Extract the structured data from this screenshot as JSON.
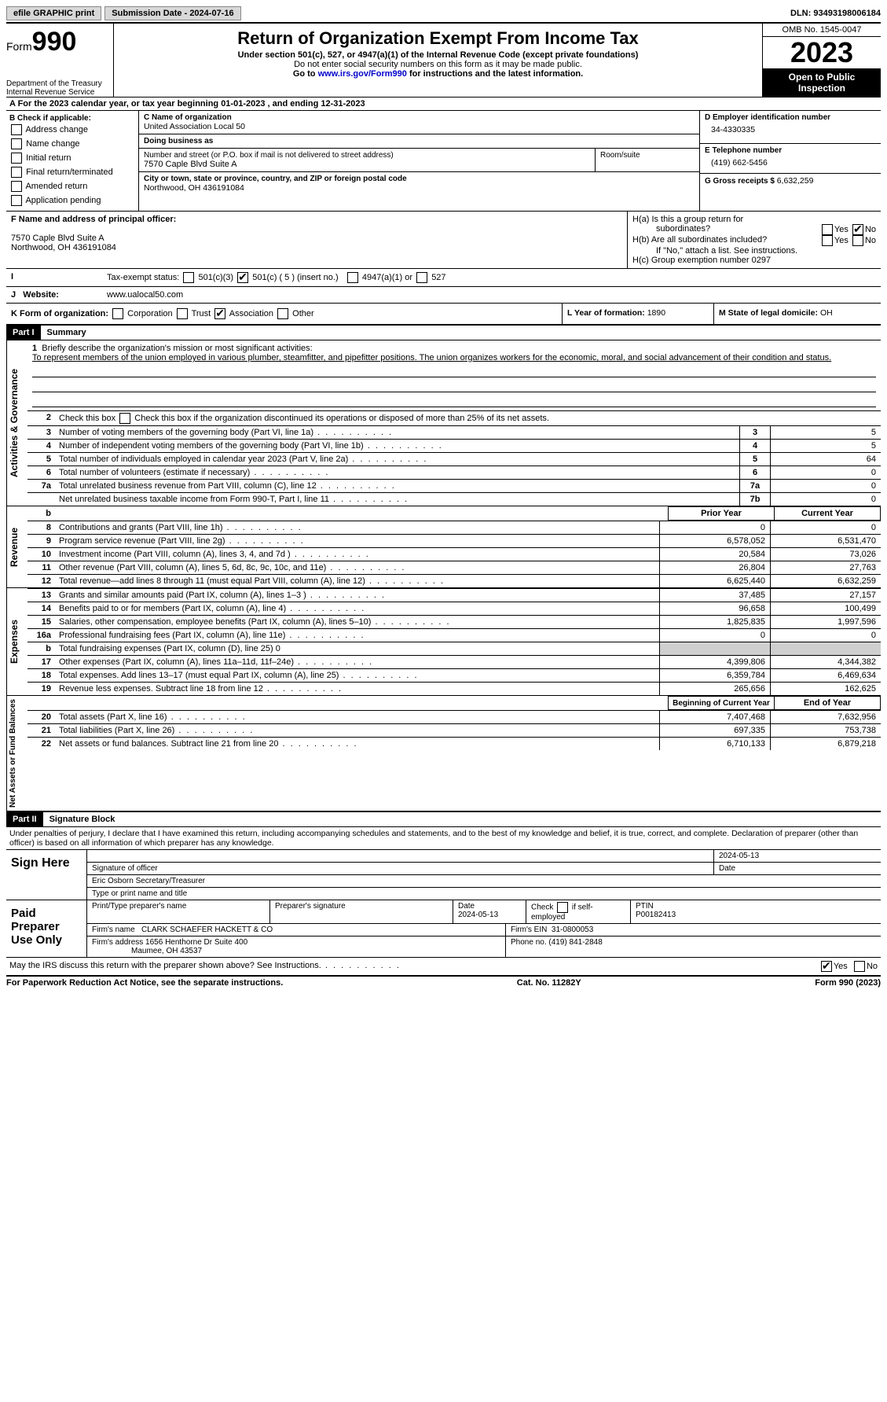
{
  "topbar": {
    "efile": "efile GRAPHIC print",
    "submission": "Submission Date - 2024-07-16",
    "dln": "DLN: 93493198006184"
  },
  "header": {
    "form_prefix": "Form",
    "form_number": "990",
    "dept1": "Department of the Treasury",
    "dept2": "Internal Revenue Service",
    "title": "Return of Organization Exempt From Income Tax",
    "subtitle": "Under section 501(c), 527, or 4947(a)(1) of the Internal Revenue Code (except private foundations)",
    "warn": "Do not enter social security numbers on this form as it may be made public.",
    "goto_pre": "Go to ",
    "goto_link": "www.irs.gov/Form990",
    "goto_post": " for instructions and the latest information.",
    "omb": "OMB No. 1545-0047",
    "year": "2023",
    "open": "Open to Public Inspection"
  },
  "row_a": "A  For the 2023 calendar year, or tax year beginning 01-01-2023    , and ending 12-31-2023",
  "box_b": {
    "title": "B Check if applicable:",
    "items": [
      "Address change",
      "Name change",
      "Initial return",
      "Final return/terminated",
      "Amended return",
      "Application pending"
    ]
  },
  "box_c": {
    "name_lbl": "C Name of organization",
    "name": "United Association Local 50",
    "dba_lbl": "Doing business as",
    "dba": "",
    "street_lbl": "Number and street (or P.O. box if mail is not delivered to street address)",
    "street": "7570 Caple Blvd Suite A",
    "room_lbl": "Room/suite",
    "room": "",
    "city_lbl": "City or town, state or province, country, and ZIP or foreign postal code",
    "city": "Northwood, OH  436191084"
  },
  "box_d": {
    "lbl": "D Employer identification number",
    "val": "34-4330335"
  },
  "box_e": {
    "lbl": "E Telephone number",
    "val": "(419) 662-5456"
  },
  "box_g": {
    "lbl": "G Gross receipts $ ",
    "val": "6,632,259"
  },
  "box_f": {
    "lbl": "F  Name and address of principal officer:",
    "line1": "7570 Caple Blvd Suite A",
    "line2": "Northwood, OH  436191084"
  },
  "box_h": {
    "a": "H(a)  Is this a group return for",
    "a2": "subordinates?",
    "b": "H(b)  Are all subordinates included?",
    "b2": "If \"No,\" attach a list. See instructions.",
    "c": "H(c)  Group exemption number   ",
    "c_val": "0297",
    "yes": "Yes",
    "no": "No"
  },
  "row_i": {
    "lbl": "Tax-exempt status:",
    "o1": "501(c)(3)",
    "o2": "501(c) ( 5 ) (insert no.)",
    "o3": "4947(a)(1) or",
    "o4": "527"
  },
  "row_j": {
    "lbl": "Website:",
    "val": "www.ualocal50.com"
  },
  "row_k": {
    "lbl": "K Form of organization:",
    "o1": "Corporation",
    "o2": "Trust",
    "o3": "Association",
    "o4": "Other"
  },
  "row_l": {
    "lbl": "L Year of formation: ",
    "val": "1890"
  },
  "row_m": {
    "lbl": "M State of legal domicile: ",
    "val": "OH"
  },
  "parts": {
    "p1": "Part I",
    "p1t": "Summary",
    "p2": "Part II",
    "p2t": "Signature Block"
  },
  "vtabs": {
    "ag": "Activities & Governance",
    "rev": "Revenue",
    "exp": "Expenses",
    "na": "Net Assets or Fund Balances"
  },
  "summary": {
    "l1_lbl": "Briefly describe the organization's mission or most significant activities:",
    "l1_txt": "To represent members of the union employed in various plumber, steamfitter, and pipefitter positions. The union organizes workers for the economic, moral, and social advancement of their condition and status.",
    "l2": "Check this box       if the organization discontinued its operations or disposed of more than 25% of its net assets.",
    "rows_ag": [
      {
        "n": "3",
        "t": "Number of voting members of the governing body (Part VI, line 1a)",
        "box": "3",
        "v": "5"
      },
      {
        "n": "4",
        "t": "Number of independent voting members of the governing body (Part VI, line 1b)",
        "box": "4",
        "v": "5"
      },
      {
        "n": "5",
        "t": "Total number of individuals employed in calendar year 2023 (Part V, line 2a)",
        "box": "5",
        "v": "64"
      },
      {
        "n": "6",
        "t": "Total number of volunteers (estimate if necessary)",
        "box": "6",
        "v": "0"
      },
      {
        "n": "7a",
        "t": "Total unrelated business revenue from Part VIII, column (C), line 12",
        "box": "7a",
        "v": "0"
      },
      {
        "n": "",
        "t": "Net unrelated business taxable income from Form 990-T, Part I, line 11",
        "box": "7b",
        "v": "0"
      }
    ],
    "hdr_prior": "Prior Year",
    "hdr_curr": "Current Year",
    "rows_rev": [
      {
        "n": "8",
        "t": "Contributions and grants (Part VIII, line 1h)",
        "p": "0",
        "c": "0"
      },
      {
        "n": "9",
        "t": "Program service revenue (Part VIII, line 2g)",
        "p": "6,578,052",
        "c": "6,531,470"
      },
      {
        "n": "10",
        "t": "Investment income (Part VIII, column (A), lines 3, 4, and 7d )",
        "p": "20,584",
        "c": "73,026"
      },
      {
        "n": "11",
        "t": "Other revenue (Part VIII, column (A), lines 5, 6d, 8c, 9c, 10c, and 11e)",
        "p": "26,804",
        "c": "27,763"
      },
      {
        "n": "12",
        "t": "Total revenue—add lines 8 through 11 (must equal Part VIII, column (A), line 12)",
        "p": "6,625,440",
        "c": "6,632,259"
      }
    ],
    "rows_exp": [
      {
        "n": "13",
        "t": "Grants and similar amounts paid (Part IX, column (A), lines 1–3 )",
        "p": "37,485",
        "c": "27,157"
      },
      {
        "n": "14",
        "t": "Benefits paid to or for members (Part IX, column (A), line 4)",
        "p": "96,658",
        "c": "100,499"
      },
      {
        "n": "15",
        "t": "Salaries, other compensation, employee benefits (Part IX, column (A), lines 5–10)",
        "p": "1,825,835",
        "c": "1,997,596"
      },
      {
        "n": "16a",
        "t": "Professional fundraising fees (Part IX, column (A), line 11e)",
        "p": "0",
        "c": "0"
      },
      {
        "n": "b",
        "t": "Total fundraising expenses (Part IX, column (D), line 25) 0",
        "p": "",
        "c": "",
        "shade": true
      },
      {
        "n": "17",
        "t": "Other expenses (Part IX, column (A), lines 11a–11d, 11f–24e)",
        "p": "4,399,806",
        "c": "4,344,382"
      },
      {
        "n": "18",
        "t": "Total expenses. Add lines 13–17 (must equal Part IX, column (A), line 25)",
        "p": "6,359,784",
        "c": "6,469,634"
      },
      {
        "n": "19",
        "t": "Revenue less expenses. Subtract line 18 from line 12",
        "p": "265,656",
        "c": "162,625"
      }
    ],
    "hdr_beg": "Beginning of Current Year",
    "hdr_end": "End of Year",
    "rows_na": [
      {
        "n": "20",
        "t": "Total assets (Part X, line 16)",
        "p": "7,407,468",
        "c": "7,632,956"
      },
      {
        "n": "21",
        "t": "Total liabilities (Part X, line 26)",
        "p": "697,335",
        "c": "753,738"
      },
      {
        "n": "22",
        "t": "Net assets or fund balances. Subtract line 21 from line 20",
        "p": "6,710,133",
        "c": "6,879,218"
      }
    ]
  },
  "sig": {
    "penalty": "Under penalties of perjury, I declare that I have examined this return, including accompanying schedules and statements, and to the best of my knowledge and belief, it is true, correct, and complete. Declaration of preparer (other than officer) is based on all information of which preparer has any knowledge.",
    "sign_here": "Sign Here",
    "sig_officer_lbl": "Signature of officer",
    "officer": "Eric Osborn  Secretary/Treasurer",
    "type_lbl": "Type or print name and title",
    "date_lbl": "Date",
    "date1": "2024-05-13",
    "paid": "Paid Preparer Use Only",
    "prep_name_lbl": "Print/Type preparer's name",
    "prep_sig_lbl": "Preparer's signature",
    "date2": "2024-05-13",
    "check_lbl": "Check        if self-employed",
    "ptin_lbl": "PTIN",
    "ptin": "P00182413",
    "firm_name_lbl": "Firm's name",
    "firm_name": "CLARK SCHAEFER HACKETT & CO",
    "firm_ein_lbl": "Firm's EIN",
    "firm_ein": "31-0800053",
    "firm_addr_lbl": "Firm's address",
    "firm_addr1": "1656 Henthorne Dr Suite 400",
    "firm_addr2": "Maumee, OH  43537",
    "phone_lbl": "Phone no.",
    "phone": "(419) 841-2848",
    "discuss": "May the IRS discuss this return with the preparer shown above? See Instructions."
  },
  "footer": {
    "left": "For Paperwork Reduction Act Notice, see the separate instructions.",
    "mid": "Cat. No. 11282Y",
    "right": "Form 990 (2023)"
  }
}
